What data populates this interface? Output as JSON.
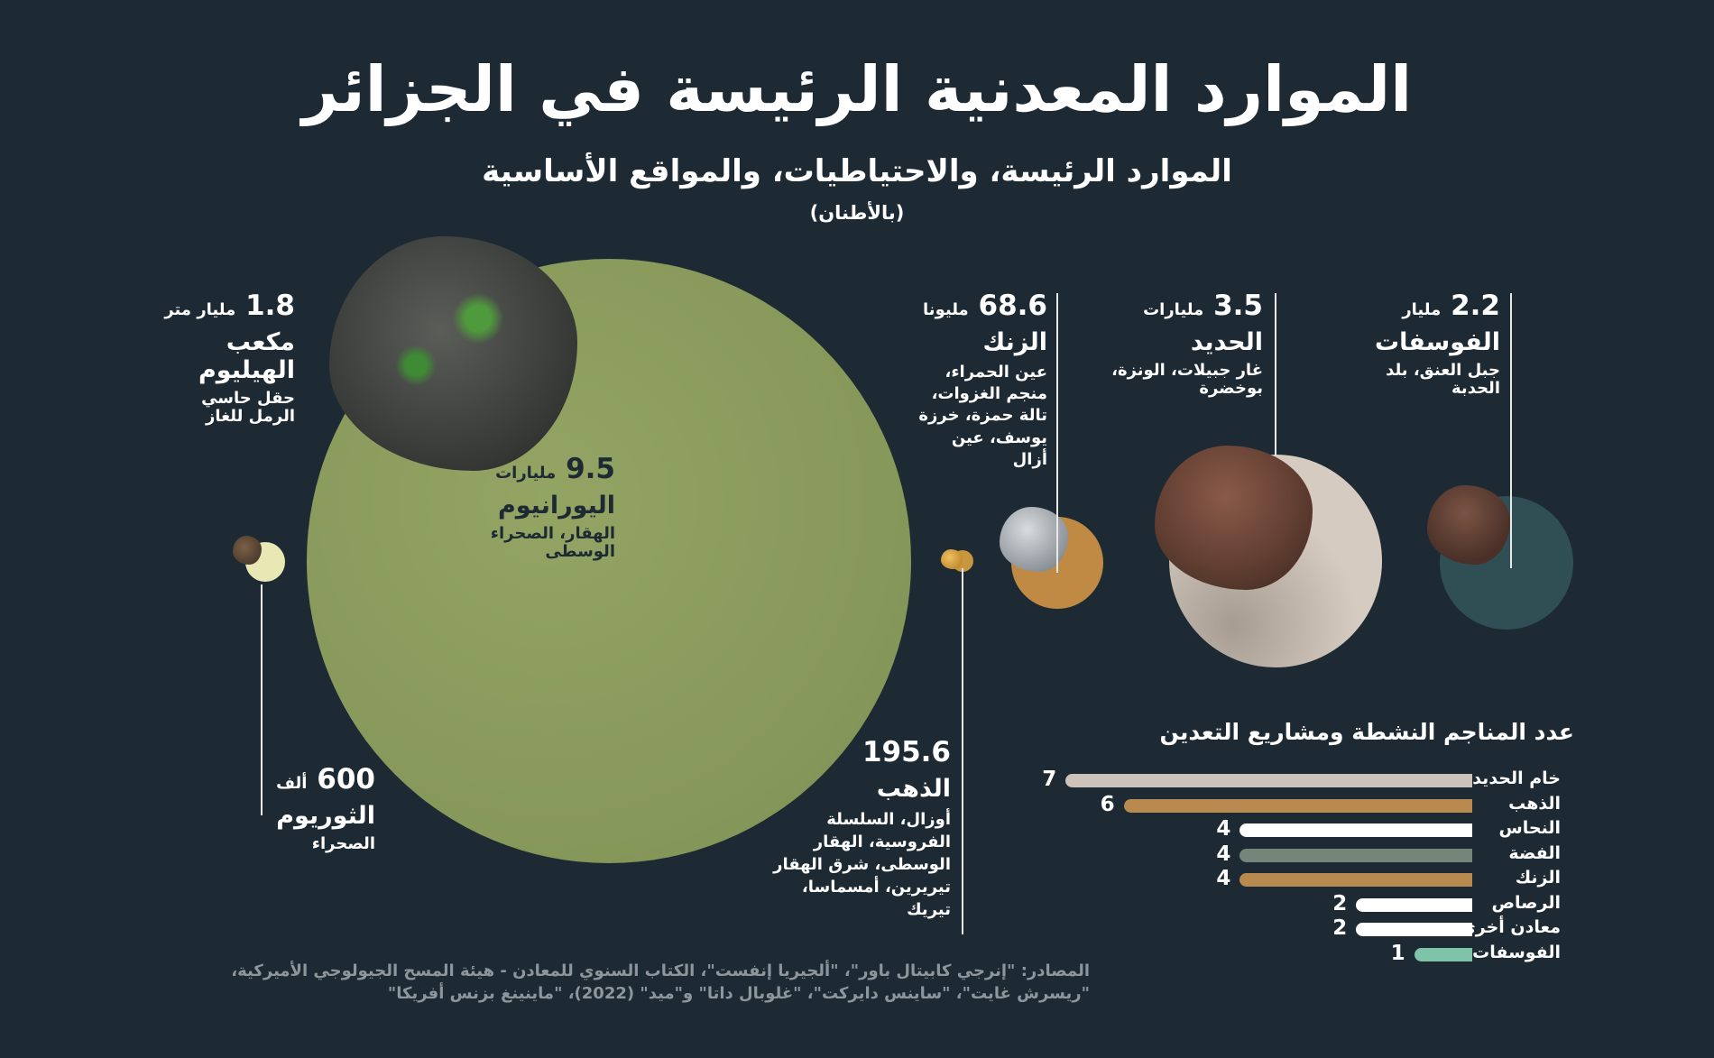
{
  "header": {
    "title": "الموارد المعدنية الرئيسة في الجزائر",
    "subtitle": "الموارد الرئيسة، والاحتياطيات، والمواقع الأساسية",
    "unit": "(بالأطنان)"
  },
  "minerals": {
    "helium": {
      "value": "1.8",
      "unit": "مليار متر",
      "name": "مكعب الهيليوم",
      "location": "حقل حاسي الرمل للغاز",
      "color": "#e9e7b4"
    },
    "uranium": {
      "value": "9.5",
      "unit": "مليارات",
      "name": "اليورانيوم",
      "location": "الهقار، الصحراء الوسطى",
      "color": "#8a9a5b"
    },
    "thorium": {
      "value": "600",
      "unit": "ألف",
      "name": "الثوريوم",
      "location": "الصحراء"
    },
    "gold": {
      "value": "195.6",
      "unit": "",
      "name": "الذهب",
      "location": "أوزال، السلسلة الفروسية، الهقار الوسطى، شرق الهقار تيريرين، أمسماسا، تيريك",
      "color": "#c8963f"
    },
    "zinc": {
      "value": "68.6",
      "unit": "مليونا",
      "name": "الزنك",
      "location": "عين الحمراء، منجم الغزوات، تالة حمزة، خرزة يوسف، عين أزال",
      "color": "#c08a45"
    },
    "iron": {
      "value": "3.5",
      "unit": "مليارات",
      "name": "الحديد",
      "location": "غار جبيلات، الونزة، بوخضرة",
      "color": "#d6cbc0"
    },
    "phosphate": {
      "value": "2.2",
      "unit": "مليار",
      "name": "الفوسفات",
      "location": "جبل العنق، بلد الحدبة",
      "color": "#2f4f55"
    }
  },
  "chart_data": {
    "type": "bar",
    "title": "عدد المناجم النشطة ومشاريع التعدين",
    "categories": [
      "خام الحديد",
      "الذهب",
      "النحاس",
      "الفضة",
      "الزنك",
      "الرصاص",
      "معادن أخرى",
      "الفوسفات"
    ],
    "values": [
      7,
      6,
      4,
      4,
      4,
      2,
      2,
      1
    ],
    "colors": [
      "#cdc3ba",
      "#b98a4f",
      "#ffffff",
      "#76857a",
      "#b98a4f",
      "#ffffff",
      "#ffffff",
      "#7fc4a8"
    ]
  },
  "footer": {
    "sources": "المصادر: \"إنرجي كابيتال باور\"، \"ألجيريا إنفست\"، الكتاب السنوي للمعادن - هيئة المسح الجيولوجي الأميركية، \"ريسرش غايت\"، \"ساينس دايركت\"، \"غلوبال داتا\" و\"ميد\" (2022)، \"ماينينغ بزنس أفريكا\""
  }
}
